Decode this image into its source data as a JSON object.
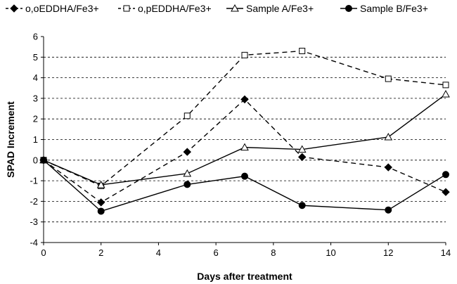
{
  "chart_data": {
    "type": "line",
    "xlabel": "Days after treatment",
    "ylabel": "SPAD Increment",
    "xlim": [
      0,
      14
    ],
    "ylim": [
      -4,
      6
    ],
    "x_ticks": [
      0,
      2,
      4,
      6,
      8,
      10,
      12,
      14
    ],
    "y_ticks": [
      -4,
      -3,
      -2,
      -1,
      0,
      1,
      2,
      3,
      4,
      5,
      6
    ],
    "grid": "horizontal dashed",
    "legend_position": "top",
    "series": [
      {
        "name": "o,oEDDHA/Fe3+",
        "marker": "diamond-filled",
        "line": "dashed",
        "color": "#000000",
        "x": [
          0,
          2,
          5,
          7,
          9,
          12,
          14
        ],
        "y": [
          0,
          -2.05,
          0.4,
          2.95,
          0.15,
          -0.35,
          -1.55
        ]
      },
      {
        "name": "o,pEDDHA/Fe3+",
        "marker": "square-open",
        "line": "dashed",
        "color": "#000000",
        "x": [
          0,
          2,
          5,
          7,
          9,
          12,
          14
        ],
        "y": [
          0,
          -1.25,
          2.15,
          5.1,
          5.3,
          3.95,
          3.65
        ]
      },
      {
        "name": "Sample A/Fe3+",
        "marker": "triangle-open",
        "line": "solid",
        "color": "#000000",
        "x": [
          0,
          2,
          5,
          7,
          9,
          12,
          14
        ],
        "y": [
          0,
          -1.2,
          -0.65,
          0.62,
          0.52,
          1.12,
          3.2
        ]
      },
      {
        "name": "Sample B/Fe3+",
        "marker": "circle-filled",
        "line": "solid",
        "color": "#000000",
        "x": [
          0,
          2,
          5,
          7,
          9,
          12,
          14
        ],
        "y": [
          0,
          -2.48,
          -1.18,
          -0.78,
          -2.2,
          -2.42,
          -0.7
        ]
      }
    ]
  }
}
